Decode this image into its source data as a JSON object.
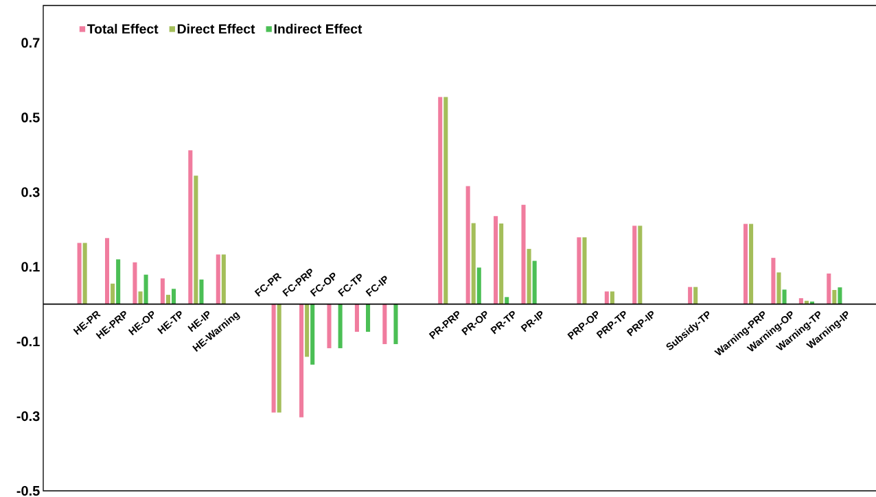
{
  "chart_data": {
    "type": "bar",
    "categories": [
      null,
      "HE-PR",
      "HE-PRP",
      "HE-OP",
      "HE-TP",
      "HE-IP",
      "HE-Warning",
      null,
      "FC-PR",
      "FC-PRP",
      "FC-OP",
      "FC-TP",
      "FC-IP",
      null,
      "PR-PRP",
      "PR-OP",
      "PR-TP",
      "PR-IP",
      null,
      "PRP-OP",
      "PRP-TP",
      "PRP-IP",
      null,
      "Subsidy-TP",
      null,
      "Warning-PRP",
      "Warning-OP",
      "Warning-TP",
      "Warning-IP",
      null
    ],
    "series": [
      {
        "name": "Total Effect",
        "color": "#f07c9e",
        "values": [
          null,
          0.164,
          0.177,
          0.112,
          0.069,
          0.412,
          0.133,
          null,
          -0.29,
          -0.303,
          -0.118,
          -0.074,
          -0.107,
          null,
          0.555,
          0.316,
          0.236,
          0.266,
          null,
          0.179,
          0.034,
          0.21,
          null,
          0.046,
          null,
          0.215,
          0.124,
          0.016,
          0.082,
          null
        ]
      },
      {
        "name": "Direct Effect",
        "color": "#a4be5a",
        "values": [
          null,
          0.164,
          0.055,
          0.034,
          0.025,
          0.344,
          0.133,
          null,
          -0.29,
          -0.141,
          null,
          null,
          null,
          null,
          0.555,
          0.217,
          0.216,
          0.148,
          null,
          0.179,
          0.034,
          0.21,
          null,
          0.046,
          null,
          0.215,
          0.085,
          0.009,
          0.038,
          null
        ]
      },
      {
        "name": "Indirect Effect",
        "color": "#4bbf55",
        "values": [
          null,
          null,
          0.12,
          0.079,
          0.041,
          0.066,
          null,
          null,
          null,
          -0.162,
          -0.118,
          -0.074,
          -0.107,
          null,
          null,
          0.098,
          0.019,
          0.116,
          null,
          null,
          null,
          null,
          null,
          null,
          null,
          null,
          0.039,
          0.007,
          0.045,
          null
        ]
      }
    ],
    "ylim": [
      -0.5,
      0.8
    ],
    "yticks": [
      -0.5,
      -0.3,
      -0.1,
      0.1,
      0.3,
      0.5,
      0.7
    ],
    "legend": "top left"
  }
}
